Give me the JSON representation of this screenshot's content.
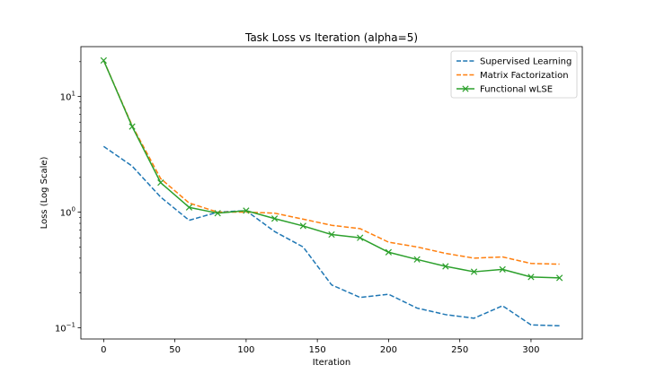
{
  "chart_data": {
    "type": "line",
    "title": "Task Loss vs Iteration (alpha=5)",
    "xlabel": "Iteration",
    "ylabel": "Loss (Log Scale)",
    "yscale": "log",
    "xlim": [
      -16,
      336
    ],
    "ylim": [
      0.08,
      27
    ],
    "xticks": [
      {
        "value": 0,
        "label": "0"
      },
      {
        "value": 50,
        "label": "50"
      },
      {
        "value": 100,
        "label": "100"
      },
      {
        "value": 150,
        "label": "150"
      },
      {
        "value": 200,
        "label": "200"
      },
      {
        "value": 250,
        "label": "250"
      },
      {
        "value": 300,
        "label": "300"
      }
    ],
    "yticks": [
      {
        "value": 0.1,
        "base": "10",
        "exp": "−1"
      },
      {
        "value": 1,
        "base": "10",
        "exp": "0"
      },
      {
        "value": 10,
        "base": "10",
        "exp": "1"
      }
    ],
    "minor_yticks": [
      0.2,
      0.3,
      0.4,
      0.5,
      0.6,
      0.7,
      0.8,
      0.9,
      2,
      3,
      4,
      5,
      6,
      7,
      8,
      9,
      20
    ],
    "grid": false,
    "legend_position": "top-right",
    "x": [
      0,
      20,
      40,
      60,
      80,
      100,
      120,
      140,
      160,
      180,
      200,
      220,
      240,
      260,
      280,
      300,
      320
    ],
    "series": [
      {
        "name": "Supervised Learning",
        "color": "#1f77b4",
        "dash": "dashed",
        "marker": "none",
        "values": [
          3.7,
          2.5,
          1.35,
          0.85,
          1.0,
          1.03,
          0.68,
          0.5,
          0.235,
          0.183,
          0.195,
          0.148,
          0.13,
          0.121,
          0.155,
          0.106,
          0.104
        ]
      },
      {
        "name": "Matrix Factorization",
        "color": "#ff7f0e",
        "dash": "dashed",
        "marker": "none",
        "values": [
          20.5,
          5.6,
          1.95,
          1.2,
          1.0,
          1.0,
          0.98,
          0.87,
          0.77,
          0.72,
          0.55,
          0.5,
          0.44,
          0.4,
          0.41,
          0.36,
          0.355
        ]
      },
      {
        "name": "Functional wLSE",
        "color": "#2ca02c",
        "dash": "solid",
        "marker": "x",
        "values": [
          20.5,
          5.5,
          1.8,
          1.1,
          0.98,
          1.03,
          0.88,
          0.76,
          0.64,
          0.6,
          0.45,
          0.39,
          0.34,
          0.305,
          0.32,
          0.275,
          0.27
        ]
      }
    ]
  }
}
